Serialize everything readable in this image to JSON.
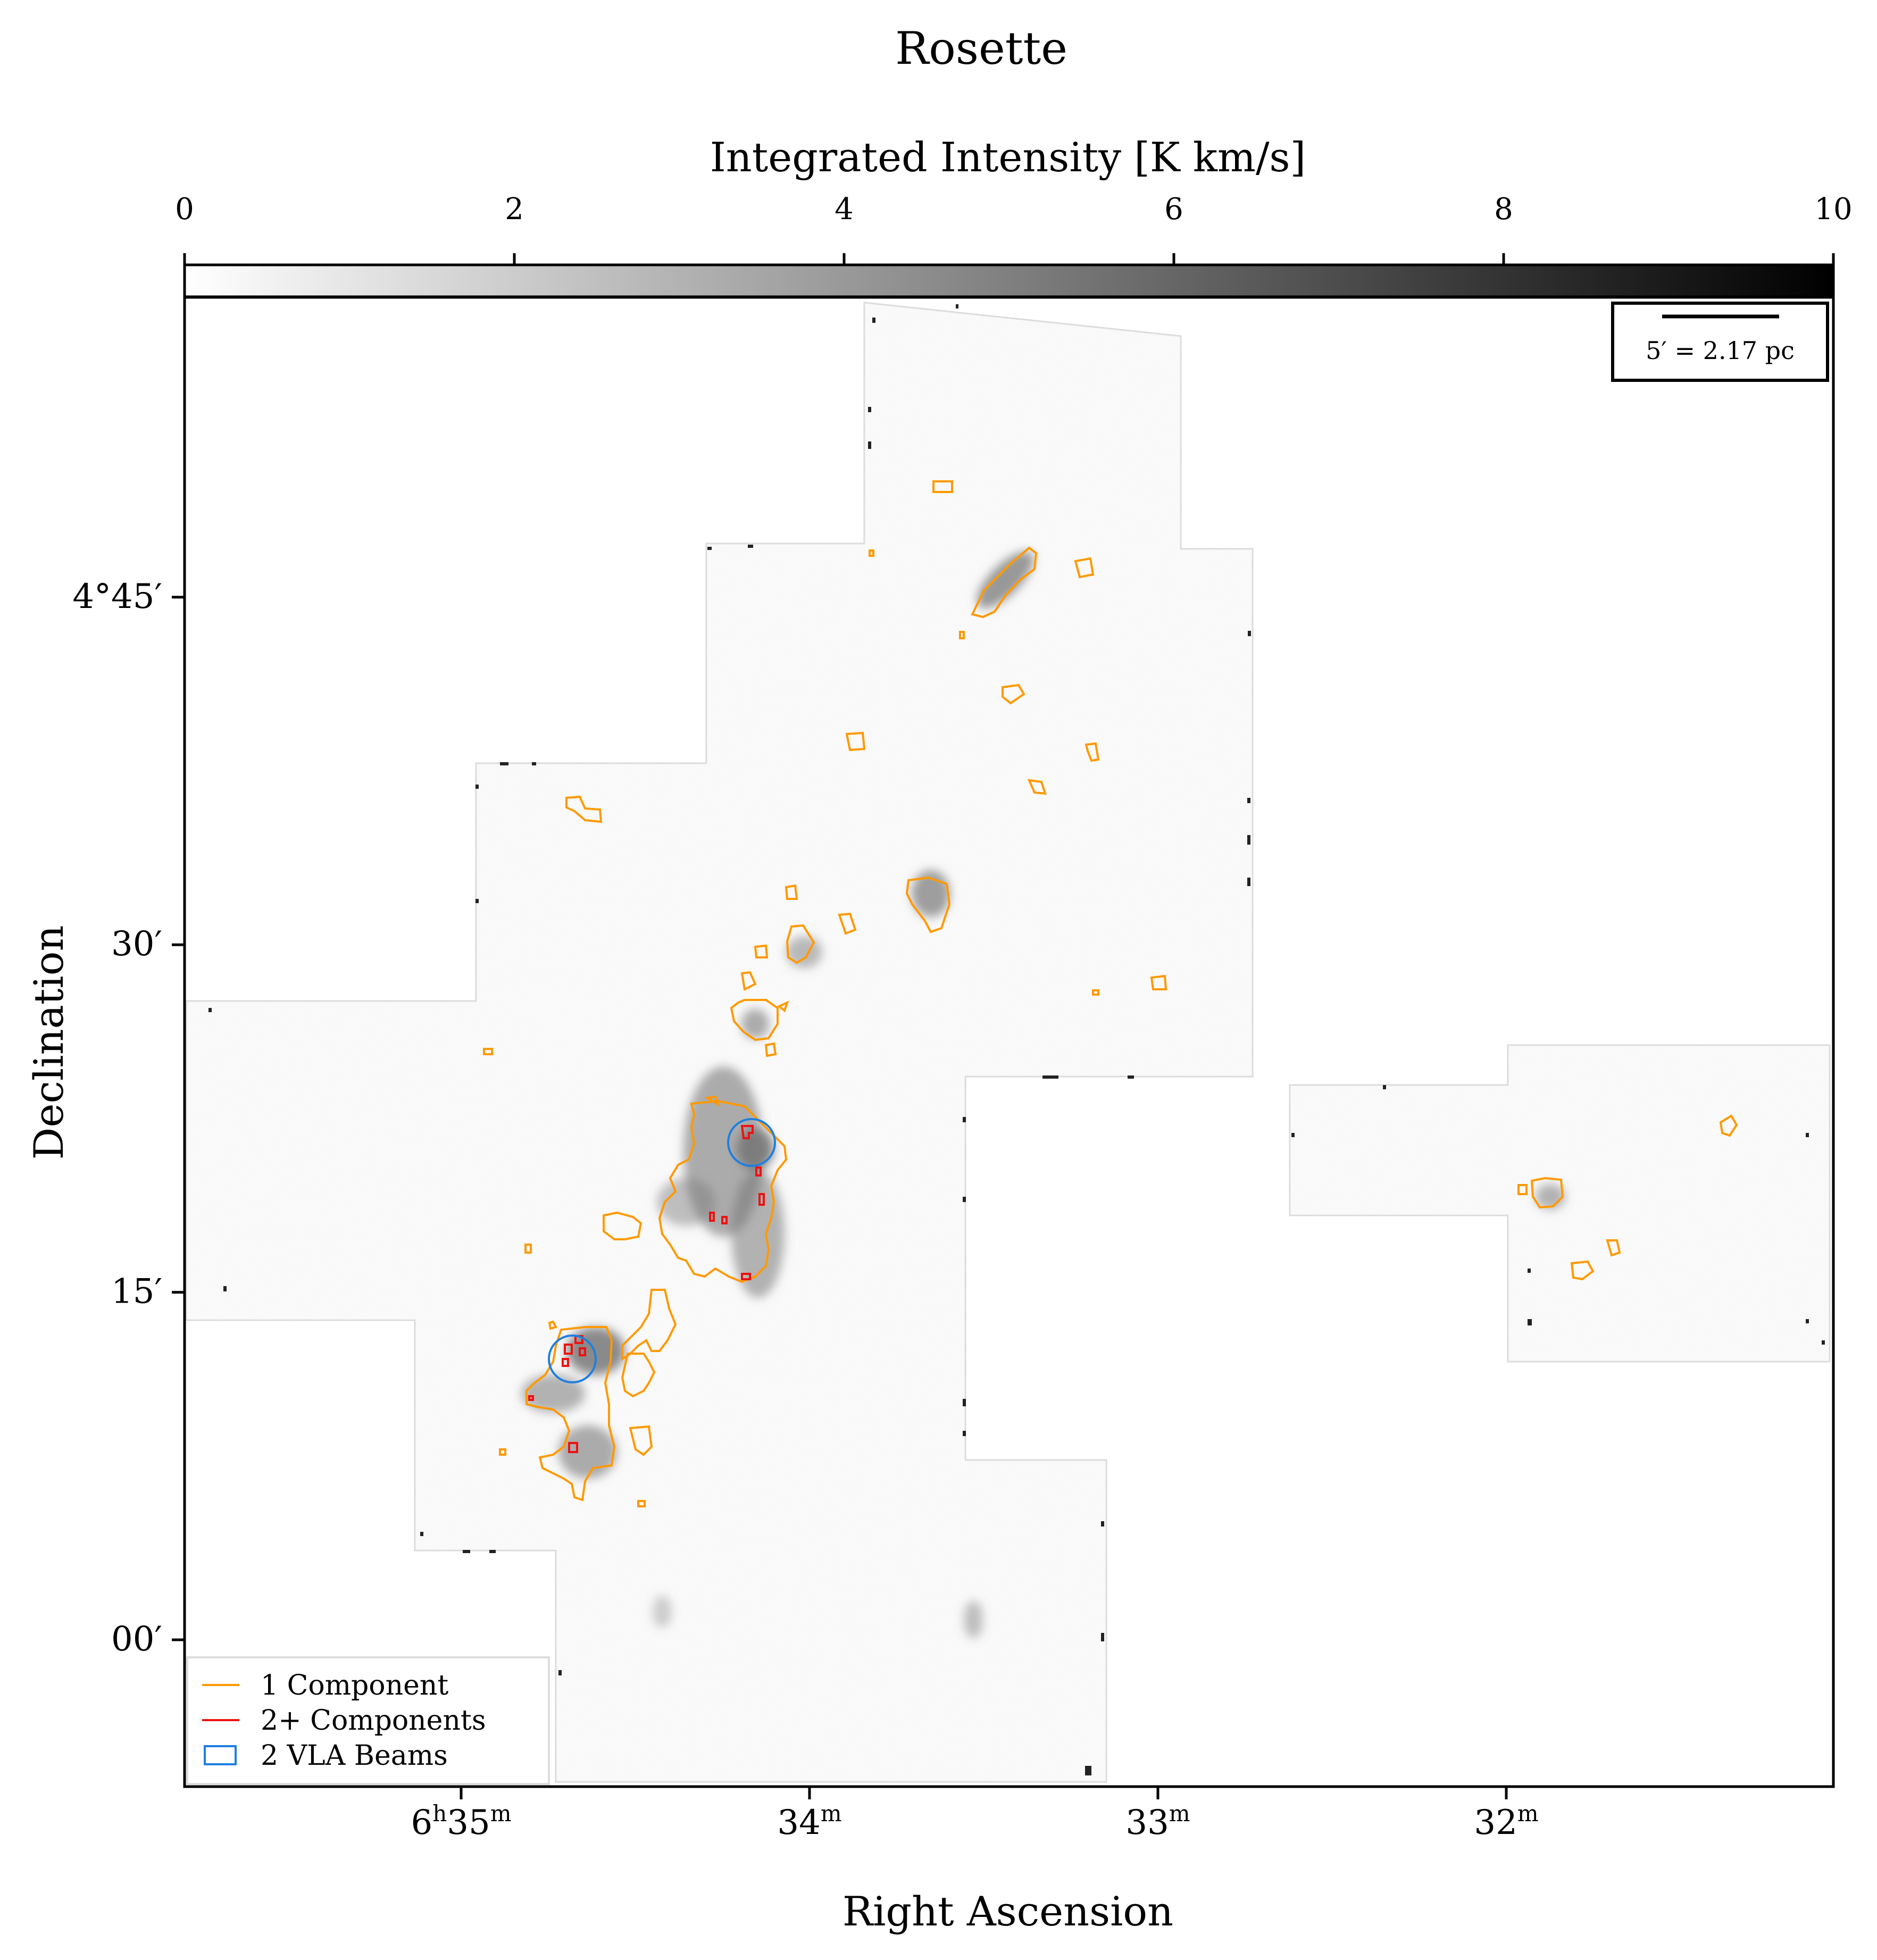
{
  "chart_data": {
    "type": "heatmap",
    "title": "Rosette",
    "xlabel": "Right Ascension",
    "ylabel": "Declination",
    "colorbar": {
      "label": "Integrated Intensity [K km/s]",
      "range": [
        0,
        10
      ],
      "ticks": [
        "0",
        "2",
        "4",
        "6",
        "8",
        "10"
      ],
      "colormap": "grayscale",
      "low_color": "#ffffff",
      "high_color": "#000000"
    },
    "x_ticks": [
      {
        "pre": "6",
        "sup1": "h",
        "mid": "35",
        "sup2": "m",
        "ra_min": 35
      },
      {
        "pre": "",
        "sup1": "",
        "mid": "34",
        "sup2": "m",
        "ra_min": 34
      },
      {
        "pre": "",
        "sup1": "",
        "mid": "33",
        "sup2": "m",
        "ra_min": 33
      },
      {
        "pre": "",
        "sup1": "",
        "mid": "32",
        "sup2": "m",
        "ra_min": 32
      }
    ],
    "y_ticks": [
      {
        "label": "4°45′",
        "dec_arcmin": 45
      },
      {
        "label": "30′",
        "dec_arcmin": 30
      },
      {
        "label": "15′",
        "dec_arcmin": 15
      },
      {
        "label": "00′",
        "dec_arcmin": 0
      }
    ],
    "scale_bar_label": "5′ = 2.17 pc",
    "legend": {
      "position": "lower-left",
      "entries": [
        {
          "label": "1 Component",
          "color": "#ff9900",
          "kind": "line"
        },
        {
          "label": "2+ Components",
          "color": "#ee1111",
          "kind": "line"
        },
        {
          "label": "2 VLA Beams",
          "color": "#1e7fe0",
          "kind": "box"
        }
      ]
    },
    "vla_beam_centers_ra_dec": [
      [
        34.15,
        21.8
      ],
      [
        34.65,
        12.5
      ]
    ],
    "colors": {
      "contour_1": "#ff9900",
      "contour_2plus": "#ee1111",
      "vla_beam": "#1e7fe0"
    }
  }
}
